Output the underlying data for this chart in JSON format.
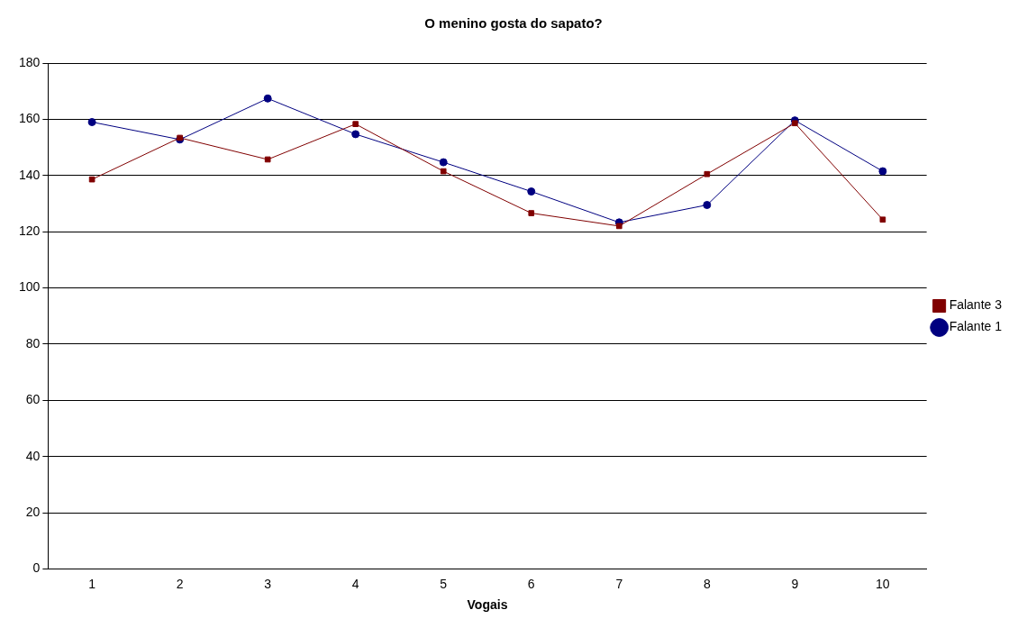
{
  "chart_data": {
    "type": "line",
    "title": "O menino gosta do sapato?",
    "xlabel": "Vogais",
    "categories": [
      "1",
      "2",
      "3",
      "4",
      "5",
      "6",
      "7",
      "8",
      "9",
      "10"
    ],
    "series": [
      {
        "name": "Falante 1",
        "color": "#000080",
        "marker": "circle",
        "values": [
          159,
          152.8,
          167.4,
          154.7,
          144.7,
          134.3,
          123.3,
          129.5,
          159.6,
          141.5
        ]
      },
      {
        "name": "Falante 3",
        "color": "#800000",
        "marker": "square",
        "values": [
          138.6,
          153.4,
          145.7,
          158.3,
          141.5,
          126.6,
          122,
          140.5,
          158.6,
          124.3
        ]
      }
    ],
    "ylim": [
      0,
      180
    ],
    "yticks": [
      0,
      20,
      40,
      60,
      80,
      100,
      120,
      140,
      160,
      180
    ],
    "grid": "y",
    "legend": "right",
    "line_style": "solid"
  }
}
